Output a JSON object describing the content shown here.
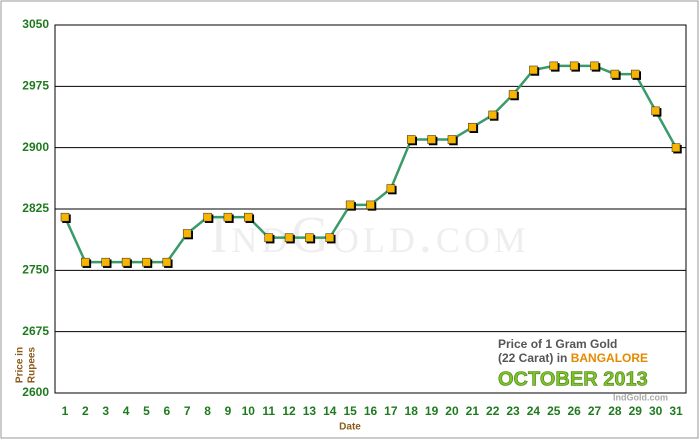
{
  "chart_data": {
    "type": "line",
    "y_label": [
      "Price in",
      "Rupees"
    ],
    "x_label": "Date",
    "annotations": {
      "line1": "Price of 1 Gram Gold",
      "line2": "(22 Carat) in",
      "city": "BANGALORE",
      "month": "OCTOBER 2013",
      "source": "IndGold.com",
      "watermark": "IndGold.com"
    },
    "categories": [
      "1",
      "2",
      "3",
      "4",
      "5",
      "6",
      "7",
      "8",
      "9",
      "10",
      "11",
      "12",
      "13",
      "14",
      "15",
      "16",
      "17",
      "18",
      "19",
      "20",
      "21",
      "22",
      "23",
      "24",
      "25",
      "26",
      "27",
      "28",
      "29",
      "30",
      "31"
    ],
    "series": [
      {
        "name": "Price",
        "color": "#3a9a6a",
        "marker_color": "#f7b500",
        "values": [
          2815,
          2760,
          2760,
          2760,
          2760,
          2760,
          2795,
          2815,
          2815,
          2815,
          2790,
          2790,
          2790,
          2790,
          2830,
          2830,
          2850,
          2910,
          2910,
          2910,
          2925,
          2940,
          2965,
          2995,
          3000,
          3000,
          3000,
          2990,
          2990,
          2945,
          2900
        ]
      }
    ],
    "ylim": [
      2600,
      3050
    ],
    "yticks": [
      2600,
      2675,
      2750,
      2825,
      2900,
      2975,
      3050
    ],
    "grid": true
  }
}
